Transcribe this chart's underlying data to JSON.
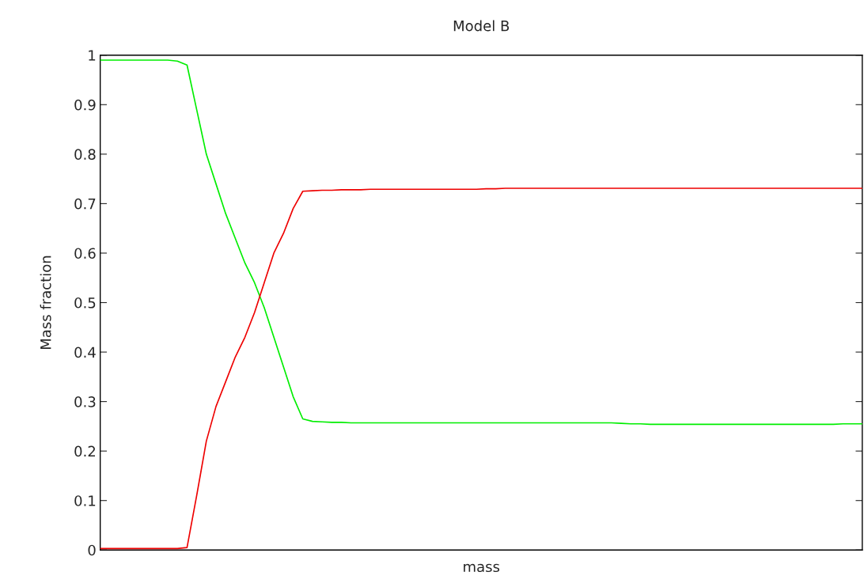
{
  "chart_data": {
    "type": "line",
    "title": "Model B",
    "xlabel": "mass",
    "ylabel": "Mass fraction",
    "categories": [
      null,
      null,
      null,
      null,
      null,
      null,
      null,
      null,
      null,
      null,
      null,
      null,
      null,
      null,
      null,
      null,
      null,
      null,
      null,
      null,
      null,
      null,
      null,
      null,
      null,
      null,
      null,
      null,
      null,
      null,
      null,
      null,
      null,
      null,
      null,
      null,
      null,
      null,
      null,
      null,
      null,
      null,
      null,
      null,
      null,
      null,
      null,
      null,
      null,
      null,
      null,
      null,
      null,
      null,
      null,
      null,
      null,
      null,
      null,
      null,
      null,
      null,
      null,
      null,
      null,
      null,
      null,
      null,
      null,
      null,
      null,
      null,
      null,
      null,
      null,
      null,
      null,
      null,
      null,
      null
    ],
    "series": [
      {
        "color": "#00ee00",
        "values": [
          0.99,
          0.99,
          0.99,
          0.99,
          0.99,
          0.99,
          0.99,
          0.99,
          0.988,
          0.98,
          0.89,
          0.8,
          0.74,
          0.68,
          0.63,
          0.58,
          0.54,
          0.49,
          0.43,
          0.37,
          0.31,
          0.265,
          0.26,
          0.259,
          0.258,
          0.258,
          0.257,
          0.257,
          0.257,
          0.257,
          0.257,
          0.257,
          0.257,
          0.257,
          0.257,
          0.257,
          0.257,
          0.257,
          0.257,
          0.257,
          0.257,
          0.257,
          0.257,
          0.257,
          0.257,
          0.257,
          0.257,
          0.257,
          0.257,
          0.257,
          0.257,
          0.257,
          0.257,
          0.257,
          0.256,
          0.255,
          0.255,
          0.254,
          0.254,
          0.254,
          0.254,
          0.254,
          0.254,
          0.254,
          0.254,
          0.254,
          0.254,
          0.254,
          0.254,
          0.254,
          0.254,
          0.254,
          0.254,
          0.254,
          0.254,
          0.254,
          0.254,
          0.255,
          0.255,
          0.255
        ]
      },
      {
        "color": "#ee0000",
        "values": [
          0.003,
          0.003,
          0.003,
          0.003,
          0.003,
          0.003,
          0.003,
          0.003,
          0.003,
          0.005,
          0.11,
          0.22,
          0.29,
          0.34,
          0.39,
          0.43,
          0.48,
          0.54,
          0.6,
          0.64,
          0.69,
          0.725,
          0.726,
          0.727,
          0.727,
          0.728,
          0.728,
          0.728,
          0.729,
          0.729,
          0.729,
          0.729,
          0.729,
          0.729,
          0.729,
          0.729,
          0.729,
          0.729,
          0.729,
          0.729,
          0.73,
          0.73,
          0.731,
          0.731,
          0.731,
          0.731,
          0.731,
          0.731,
          0.731,
          0.731,
          0.731,
          0.731,
          0.731,
          0.731,
          0.731,
          0.731,
          0.731,
          0.731,
          0.731,
          0.731,
          0.731,
          0.731,
          0.731,
          0.731,
          0.731,
          0.731,
          0.731,
          0.731,
          0.731,
          0.731,
          0.731,
          0.731,
          0.731,
          0.731,
          0.731,
          0.731,
          0.731,
          0.731,
          0.731,
          0.731
        ]
      }
    ],
    "ylim": [
      0,
      1
    ],
    "yticks": [
      0,
      0.1,
      0.2,
      0.3,
      0.4,
      0.5,
      0.6,
      0.7,
      0.8,
      0.9,
      1
    ],
    "tick_labels": "y"
  }
}
